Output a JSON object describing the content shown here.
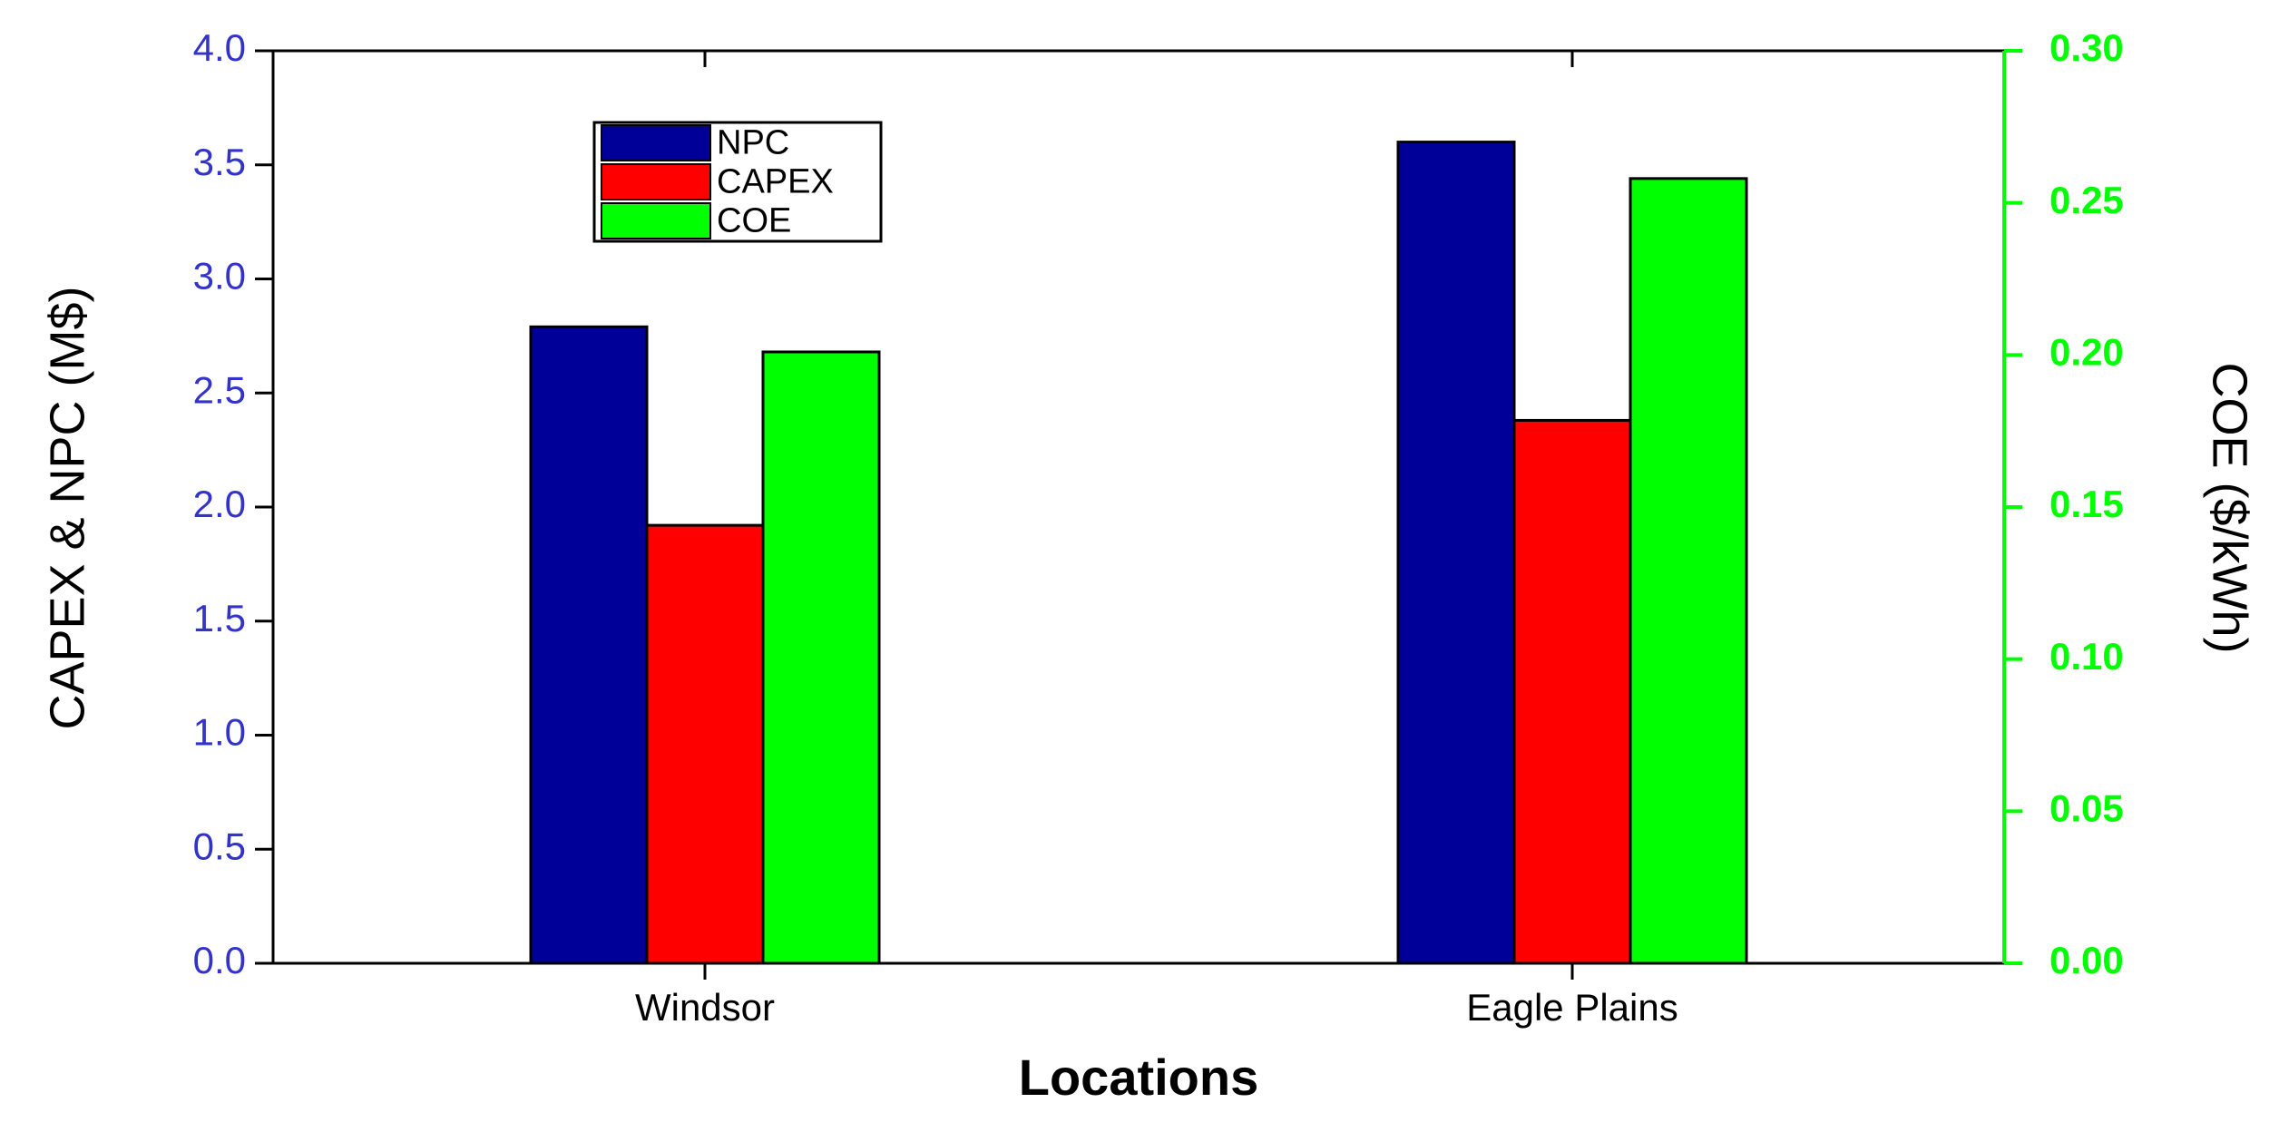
{
  "chart_data": {
    "type": "bar",
    "x_label": "Locations",
    "y_label": "CAPEX & NPC (M$)",
    "y2_label": "COE ($/kWh)",
    "categories": [
      "Windsor",
      "Eagle Plains"
    ],
    "series": [
      {
        "name": "NPC",
        "color": "#000099",
        "values": [
          2.79,
          3.6
        ]
      },
      {
        "name": "CAPEX",
        "color": "#ff0000",
        "values": [
          1.92,
          2.38
        ]
      },
      {
        "name": "COE",
        "color": "#00ff00",
        "values": [
          0.201,
          0.258
        ],
        "axis": "y2"
      }
    ],
    "ylim": [
      0,
      4
    ],
    "yticks": [
      {
        "value": 0,
        "label": "0.0"
      },
      {
        "value": 0.5,
        "label": "0.5"
      },
      {
        "value": 1,
        "label": "1.0"
      },
      {
        "value": 1.5,
        "label": "1.5"
      },
      {
        "value": 2,
        "label": "2.0"
      },
      {
        "value": 2.5,
        "label": "2.5"
      },
      {
        "value": 3,
        "label": "3.0"
      },
      {
        "value": 3.5,
        "label": "3.5"
      },
      {
        "value": 4,
        "label": "4.0"
      }
    ],
    "y2lim": [
      0,
      0.3
    ],
    "y2ticks": [
      {
        "value": 0,
        "label": "0.00"
      },
      {
        "value": 0.05,
        "label": "0.05"
      },
      {
        "value": 0.1,
        "label": "0.10"
      },
      {
        "value": 0.15,
        "label": "0.15"
      },
      {
        "value": 0.2,
        "label": "0.20"
      },
      {
        "value": 0.25,
        "label": "0.25"
      },
      {
        "value": 0.3,
        "label": "0.30"
      }
    ],
    "yaxis_color": "#3333cc",
    "y2axis_color": "#00ff00",
    "legend": "upper left"
  }
}
